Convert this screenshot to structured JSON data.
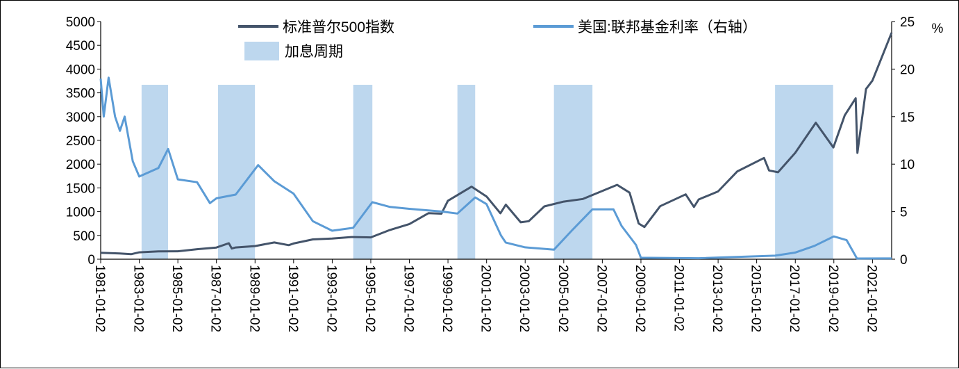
{
  "chart_data": {
    "type": "line",
    "title": "",
    "xlabel": "",
    "ylabel": "",
    "y2unit": "%",
    "x_start": "1981-01-02",
    "x_end": "2021-12-31",
    "ylim": [
      0,
      5000
    ],
    "y2lim": [
      0,
      25
    ],
    "yticks": [
      "0",
      "500",
      "1000",
      "1500",
      "2000",
      "2500",
      "3000",
      "3500",
      "4000",
      "4500",
      "5000"
    ],
    "y2ticks": [
      "0",
      "5",
      "10",
      "15",
      "20",
      "25"
    ],
    "xticks": [
      "1981-01-02",
      "1983-01-02",
      "1985-01-02",
      "1987-01-02",
      "1989-01-02",
      "1991-01-02",
      "1993-01-02",
      "1995-01-02",
      "1997-01-02",
      "1999-01-02",
      "2001-01-02",
      "2003-01-02",
      "2005-01-02",
      "2007-01-02",
      "2009-01-02",
      "2011-01-02",
      "2013-01-02",
      "2015-01-02",
      "2017-01-02",
      "2019-01-02",
      "2021-01-02"
    ],
    "legend": [
      {
        "label": "标准普尔500指数",
        "color": "#44546a",
        "kind": "line"
      },
      {
        "label": "美国:联邦基金利率（右轴）",
        "color": "#5b9bd5",
        "kind": "line"
      },
      {
        "label": "加息周期",
        "color": "#bdd7ee",
        "kind": "box"
      }
    ],
    "legend_position": "top",
    "shaded_periods": [
      {
        "start": "1983-02-15",
        "end": "1984-06-30"
      },
      {
        "start": "1987-02-01",
        "end": "1988-12-31"
      },
      {
        "start": "1994-02-04",
        "end": "1995-02-01"
      },
      {
        "start": "1999-06-30",
        "end": "2000-05-31"
      },
      {
        "start": "2004-06-30",
        "end": "2006-06-29"
      },
      {
        "start": "2015-12-16",
        "end": "2018-12-19"
      }
    ],
    "series": [
      {
        "name": "标准普尔500指数",
        "axis": "left",
        "color": "#44546a",
        "points": [
          [
            "1981-01-02",
            136
          ],
          [
            "1982-01-01",
            122
          ],
          [
            "1982-08-01",
            105
          ],
          [
            "1983-01-01",
            145
          ],
          [
            "1984-01-01",
            164
          ],
          [
            "1985-01-01",
            167
          ],
          [
            "1986-01-01",
            211
          ],
          [
            "1987-01-01",
            246
          ],
          [
            "1987-08-25",
            336
          ],
          [
            "1987-10-20",
            225
          ],
          [
            "1988-01-01",
            247
          ],
          [
            "1989-01-01",
            277
          ],
          [
            "1990-01-01",
            353
          ],
          [
            "1990-10-01",
            295
          ],
          [
            "1991-01-01",
            330
          ],
          [
            "1992-01-01",
            417
          ],
          [
            "1993-01-01",
            435
          ],
          [
            "1994-01-01",
            466
          ],
          [
            "1995-01-01",
            459
          ],
          [
            "1996-01-01",
            615
          ],
          [
            "1997-01-01",
            740
          ],
          [
            "1998-01-01",
            970
          ],
          [
            "1998-08-31",
            957
          ],
          [
            "1999-01-01",
            1229
          ],
          [
            "2000-03-24",
            1527
          ],
          [
            "2001-01-01",
            1320
          ],
          [
            "2001-09-21",
            966
          ],
          [
            "2002-01-01",
            1148
          ],
          [
            "2002-10-09",
            777
          ],
          [
            "2003-03-11",
            800
          ],
          [
            "2004-01-01",
            1111
          ],
          [
            "2005-01-01",
            1212
          ],
          [
            "2006-01-01",
            1268
          ],
          [
            "2007-10-09",
            1565
          ],
          [
            "2008-06-01",
            1400
          ],
          [
            "2008-11-20",
            752
          ],
          [
            "2009-03-09",
            677
          ],
          [
            "2010-01-01",
            1115
          ],
          [
            "2011-04-29",
            1364
          ],
          [
            "2011-10-03",
            1099
          ],
          [
            "2012-01-01",
            1258
          ],
          [
            "2013-01-01",
            1426
          ],
          [
            "2014-01-01",
            1848
          ],
          [
            "2015-05-21",
            2130
          ],
          [
            "2015-08-25",
            1867
          ],
          [
            "2016-02-11",
            1829
          ],
          [
            "2017-01-01",
            2238
          ],
          [
            "2018-01-26",
            2872
          ],
          [
            "2018-12-24",
            2351
          ],
          [
            "2019-07-26",
            3025
          ],
          [
            "2020-02-19",
            3386
          ],
          [
            "2020-03-23",
            2237
          ],
          [
            "2020-09-02",
            3580
          ],
          [
            "2021-01-01",
            3756
          ],
          [
            "2021-12-31",
            4766
          ]
        ]
      },
      {
        "name": "美国:联邦基金利率（右轴）",
        "axis": "right",
        "color": "#5b9bd5",
        "points": [
          [
            "1981-01-02",
            19.0
          ],
          [
            "1981-03-01",
            15.0
          ],
          [
            "1981-06-01",
            19.1
          ],
          [
            "1981-10-01",
            15.0
          ],
          [
            "1982-01-01",
            13.5
          ],
          [
            "1982-04-01",
            15.0
          ],
          [
            "1982-09-01",
            10.3
          ],
          [
            "1983-01-01",
            8.7
          ],
          [
            "1984-01-01",
            9.6
          ],
          [
            "1984-07-01",
            11.6
          ],
          [
            "1985-01-01",
            8.4
          ],
          [
            "1986-01-01",
            8.1
          ],
          [
            "1986-09-01",
            5.9
          ],
          [
            "1987-01-01",
            6.4
          ],
          [
            "1988-01-01",
            6.8
          ],
          [
            "1989-03-01",
            9.9
          ],
          [
            "1990-01-01",
            8.2
          ],
          [
            "1991-01-01",
            6.9
          ],
          [
            "1992-01-01",
            4.0
          ],
          [
            "1993-01-01",
            3.0
          ],
          [
            "1994-02-01",
            3.3
          ],
          [
            "1995-02-01",
            6.0
          ],
          [
            "1996-01-01",
            5.5
          ],
          [
            "1997-01-01",
            5.3
          ],
          [
            "1998-10-01",
            5.0
          ],
          [
            "1999-06-30",
            4.8
          ],
          [
            "2000-05-31",
            6.5
          ],
          [
            "2001-01-01",
            5.8
          ],
          [
            "2001-10-01",
            2.5
          ],
          [
            "2002-01-01",
            1.75
          ],
          [
            "2003-01-01",
            1.25
          ],
          [
            "2004-06-30",
            1.0
          ],
          [
            "2005-06-01",
            3.0
          ],
          [
            "2006-06-29",
            5.25
          ],
          [
            "2007-08-01",
            5.25
          ],
          [
            "2008-01-01",
            3.5
          ],
          [
            "2008-10-01",
            1.5
          ],
          [
            "2009-01-01",
            0.15
          ],
          [
            "2012-01-01",
            0.1
          ],
          [
            "2015-12-16",
            0.37
          ],
          [
            "2017-01-01",
            0.7
          ],
          [
            "2018-01-01",
            1.4
          ],
          [
            "2019-01-01",
            2.4
          ],
          [
            "2019-09-01",
            2.0
          ],
          [
            "2020-03-15",
            0.07
          ],
          [
            "2021-12-31",
            0.08
          ]
        ]
      }
    ]
  }
}
